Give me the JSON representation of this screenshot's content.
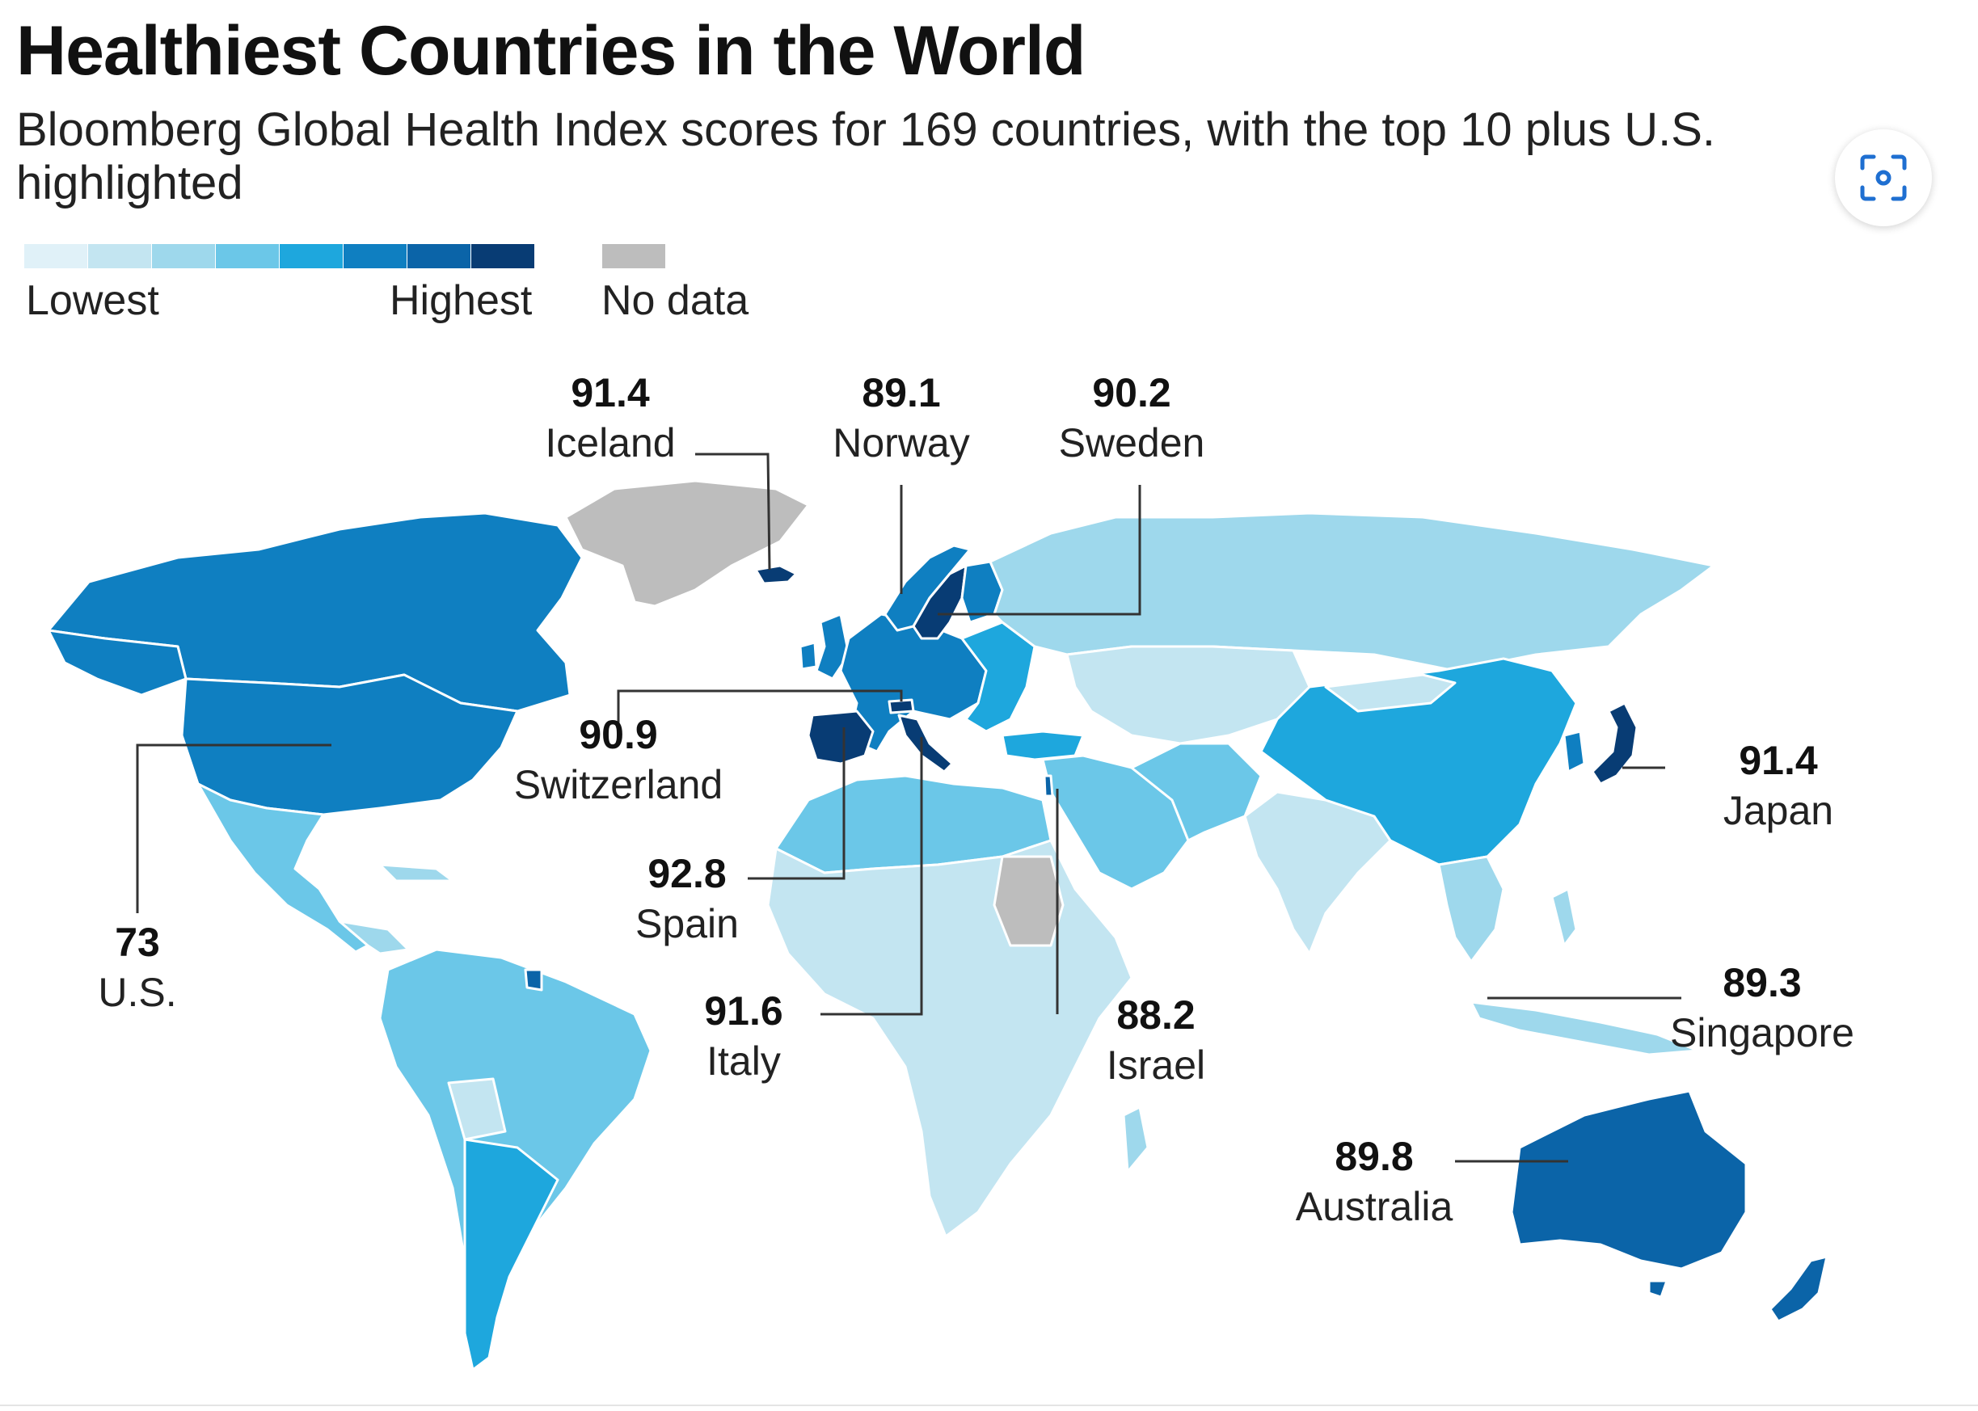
{
  "header": {
    "title": "Healthiest Countries in the World",
    "subtitle": "Bloomberg Global Health Index scores for 169 countries, with the top 10 plus U.S. highlighted"
  },
  "legend": {
    "low_label": "Lowest",
    "high_label": "Highest",
    "nodata_label": "No data",
    "scale_colors": [
      "#e0f1f8",
      "#c3e5f1",
      "#9ed8ec",
      "#6bc7e8",
      "#1ea7dd",
      "#0f7fc1",
      "#0b64a8",
      "#083c74"
    ],
    "nodata_color": "#bdbdbd"
  },
  "map": {
    "colors": {
      "ocean": "#ffffff",
      "border": "#ffffff"
    },
    "callouts": [
      {
        "id": "iceland",
        "score": "91.4",
        "country": "Iceland"
      },
      {
        "id": "norway",
        "score": "89.1",
        "country": "Norway"
      },
      {
        "id": "sweden",
        "score": "90.2",
        "country": "Sweden"
      },
      {
        "id": "switzerland",
        "score": "90.9",
        "country": "Switzerland"
      },
      {
        "id": "spain",
        "score": "92.8",
        "country": "Spain"
      },
      {
        "id": "italy",
        "score": "91.6",
        "country": "Italy"
      },
      {
        "id": "israel",
        "score": "88.2",
        "country": "Israel"
      },
      {
        "id": "japan",
        "score": "91.4",
        "country": "Japan"
      },
      {
        "id": "singapore",
        "score": "89.3",
        "country": "Singapore"
      },
      {
        "id": "australia",
        "score": "89.8",
        "country": "Australia"
      },
      {
        "id": "us",
        "score": "73",
        "country": "U.S."
      }
    ]
  },
  "icons": {
    "scan": "scan-icon"
  }
}
